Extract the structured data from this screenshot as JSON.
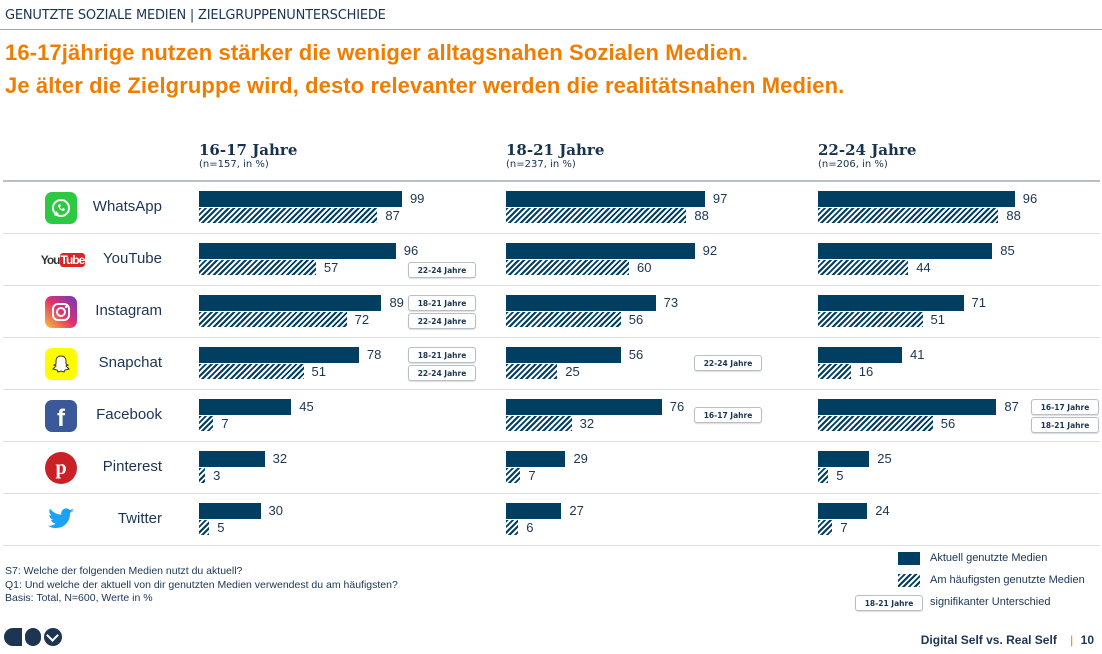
{
  "header": {
    "topline": "GENUTZTE SOZIALE MEDIEN | ZIELGRUPPENUNTERSCHIEDE",
    "title_line1": "16-17jährige nutzen stärker die weniger alltagsnahen Sozialen Medien.",
    "title_line2": "Je älter die Zielgruppe wird, desto relevanter werden die realitätsnahen Medien."
  },
  "colors": {
    "accent": "#f07d00",
    "bar": "#003f62"
  },
  "chart_data": {
    "type": "bar",
    "orientation": "horizontal",
    "xlim": [
      0,
      100
    ],
    "groups": [
      {
        "label": "16-17 Jahre",
        "sub": "(n=157, in %)"
      },
      {
        "label": "18-21 Jahre",
        "sub": "(n=237, in %)"
      },
      {
        "label": "22-24 Jahre",
        "sub": "(n=206, in %)"
      }
    ],
    "categories": [
      "WhatsApp",
      "YouTube",
      "Instagram",
      "Snapchat",
      "Facebook",
      "Pinterest",
      "Twitter"
    ],
    "icons": [
      "whatsapp-icon",
      "youtube-icon",
      "instagram-icon",
      "snapchat-icon",
      "facebook-icon",
      "pinterest-icon",
      "twitter-icon"
    ],
    "series": [
      {
        "name": "Aktuell genutzte Medien",
        "style": "solid",
        "values": [
          [
            99,
            97,
            96
          ],
          [
            96,
            92,
            85
          ],
          [
            89,
            73,
            71
          ],
          [
            78,
            56,
            41
          ],
          [
            45,
            76,
            87
          ],
          [
            32,
            29,
            25
          ],
          [
            30,
            27,
            24
          ]
        ]
      },
      {
        "name": "Am häufigsten genutzte Medien",
        "style": "hatched",
        "values": [
          [
            87,
            88,
            88
          ],
          [
            57,
            60,
            44
          ],
          [
            72,
            56,
            51
          ],
          [
            51,
            25,
            16
          ],
          [
            7,
            32,
            56
          ],
          [
            3,
            7,
            5
          ],
          [
            5,
            6,
            7
          ]
        ]
      }
    ],
    "significance": [
      [
        [],
        [],
        []
      ],
      [
        [
          "22-24 Jahre"
        ],
        [],
        []
      ],
      [
        [
          "18-21 Jahre",
          "22-24 Jahre"
        ],
        [],
        []
      ],
      [
        [
          "18-21 Jahre",
          "22-24 Jahre"
        ],
        [
          "22-24 Jahre"
        ],
        []
      ],
      [
        [],
        [
          "16-17 Jahre"
        ],
        [
          "16-17 Jahre",
          "18-21 Jahre"
        ]
      ],
      [
        [],
        [],
        []
      ],
      [
        [],
        [],
        []
      ]
    ]
  },
  "footnotes": [
    "S7: Welche der folgenden Medien nutzt du aktuell?",
    "Q1: Und welche der aktuell von dir genutzten Medien verwendest du am häufigsten?",
    "Basis: Total, N=600, Werte in %"
  ],
  "legend": {
    "solid": "Aktuell genutzte Medien",
    "hatched": "Am häufigsten genutzte Medien",
    "badge_example": "18-21 Jahre",
    "badge": "signifikanter Unterschied"
  },
  "footer": {
    "logo": "GIM",
    "report": "Digital Self vs. Real Self",
    "page": "10"
  }
}
